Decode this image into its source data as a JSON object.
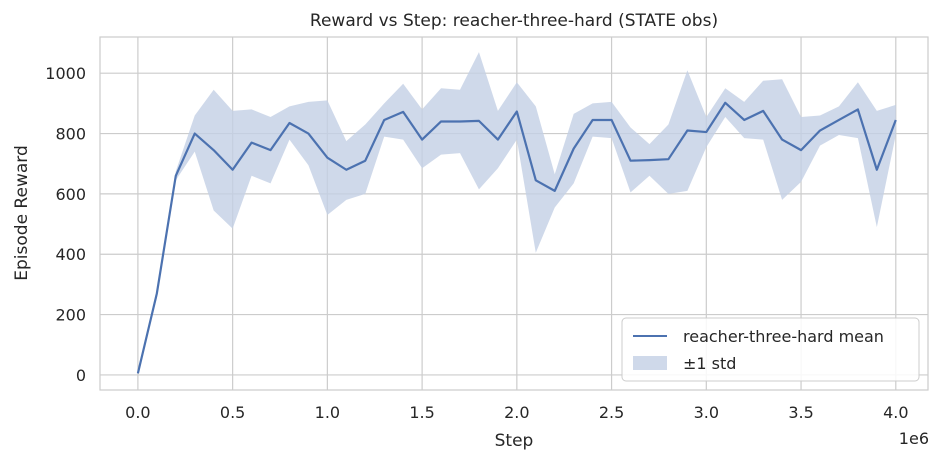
{
  "chart_data": {
    "type": "line",
    "title": "Reward vs Step: reacher-three-hard (STATE obs)",
    "xlabel": "Step",
    "ylabel": "Episode Reward",
    "x_offset_label": "1e6",
    "xlim": [
      -0.2,
      4.17
    ],
    "ylim": [
      -50,
      1120
    ],
    "xticks": [
      0.0,
      0.5,
      1.0,
      1.5,
      2.0,
      2.5,
      3.0,
      3.5,
      4.0
    ],
    "xtick_labels": [
      "0.0",
      "0.5",
      "1.0",
      "1.5",
      "2.0",
      "2.5",
      "3.0",
      "3.5",
      "4.0"
    ],
    "yticks": [
      0,
      200,
      400,
      600,
      800,
      1000
    ],
    "ytick_labels": [
      "0",
      "200",
      "400",
      "600",
      "800",
      "1000"
    ],
    "grid": true,
    "legend_position": "lower-right",
    "x": [
      0.0,
      0.1,
      0.2,
      0.3,
      0.4,
      0.5,
      0.6,
      0.7,
      0.8,
      0.9,
      1.0,
      1.1,
      1.2,
      1.3,
      1.4,
      1.5,
      1.6,
      1.7,
      1.8,
      1.9,
      2.0,
      2.1,
      2.2,
      2.3,
      2.4,
      2.5,
      2.6,
      2.7,
      2.8,
      2.9,
      3.0,
      3.1,
      3.2,
      3.3,
      3.4,
      3.5,
      3.6,
      3.7,
      3.8,
      3.9,
      4.0
    ],
    "series": [
      {
        "name": "reacher-three-hard mean",
        "values": [
          5,
          270,
          660,
          800,
          745,
          680,
          770,
          745,
          835,
          800,
          720,
          680,
          710,
          845,
          872,
          780,
          840,
          840,
          842,
          780,
          873,
          645,
          610,
          750,
          845,
          845,
          710,
          712,
          715,
          810,
          805,
          902,
          845,
          875,
          780,
          745,
          810,
          845,
          880,
          680,
          845
        ]
      }
    ],
    "band": {
      "name": "±1 std",
      "upper": [
        5,
        285,
        675,
        860,
        945,
        875,
        880,
        855,
        890,
        905,
        910,
        775,
        830,
        900,
        965,
        880,
        950,
        945,
        1070,
        875,
        970,
        890,
        665,
        865,
        900,
        905,
        820,
        765,
        830,
        1010,
        855,
        950,
        905,
        975,
        980,
        855,
        860,
        890,
        970,
        875,
        895
      ],
      "lower": [
        5,
        255,
        645,
        740,
        545,
        485,
        660,
        635,
        780,
        695,
        530,
        580,
        600,
        790,
        780,
        685,
        730,
        735,
        615,
        685,
        780,
        405,
        555,
        635,
        790,
        785,
        605,
        660,
        600,
        610,
        755,
        855,
        785,
        780,
        580,
        640,
        760,
        795,
        785,
        490,
        795
      ]
    },
    "colors": {
      "line": "#4c72b0",
      "band": "#c3cfe5",
      "grid": "#cccccc",
      "axis_frame": "#cccccc",
      "text": "#262626"
    }
  }
}
